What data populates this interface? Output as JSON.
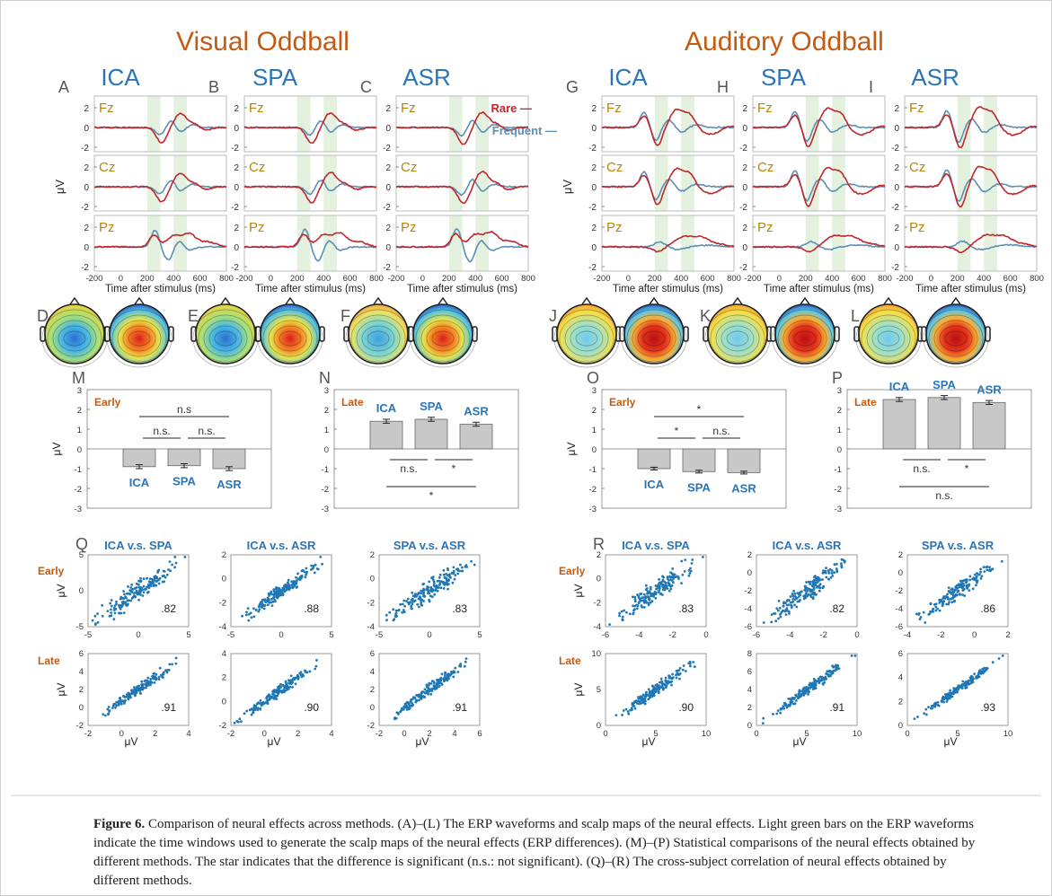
{
  "sections": [
    {
      "title": "Visual Oddball",
      "method_headers": [
        "ICA",
        "SPA",
        "ASR"
      ],
      "panel_letters": [
        "A",
        "B",
        "C"
      ],
      "topo_letters": [
        "D",
        "E",
        "F"
      ]
    },
    {
      "title": "Auditory Oddball",
      "method_headers": [
        "ICA",
        "SPA",
        "ASR"
      ],
      "panel_letters": [
        "G",
        "H",
        "I"
      ],
      "topo_letters": [
        "J",
        "K",
        "L"
      ]
    }
  ],
  "erp": {
    "channels": [
      "Fz",
      "Cz",
      "Pz"
    ],
    "ylabel": "μV",
    "xlabel": "Time after stimulus (ms)",
    "xticks": [
      "-200",
      "0",
      "200",
      "400",
      "600",
      "800"
    ],
    "yticks": [
      "2",
      "0",
      "-2"
    ],
    "legend": {
      "rare": "Rare",
      "frequent": "Frequent"
    },
    "colors": {
      "rare": "#c0262b",
      "frequent": "#5b8fb5",
      "window": "#e3f1de"
    }
  },
  "bar_panels": [
    {
      "letter": "M",
      "condition": "Early",
      "methods": [
        "ICA",
        "SPA",
        "ASR"
      ],
      "values": [
        -0.9,
        -0.85,
        -1.0
      ],
      "errors": [
        0.1,
        0.1,
        0.1
      ],
      "yticks": [
        "3",
        "2",
        "1",
        "0",
        "-1",
        "-2",
        "-3"
      ],
      "ylabel": "μV",
      "sig": [
        "n.s",
        "n.s.",
        "n.s."
      ]
    },
    {
      "letter": "N",
      "condition": "Late",
      "methods": [
        "ICA",
        "SPA",
        "ASR"
      ],
      "values": [
        1.4,
        1.5,
        1.25
      ],
      "errors": [
        0.1,
        0.1,
        0.1
      ],
      "yticks": [
        "3",
        "2",
        "1",
        "0",
        "-1",
        "-2",
        "-3"
      ],
      "ylabel": "",
      "sig": [
        "n.s.",
        "*",
        "*"
      ]
    },
    {
      "letter": "O",
      "condition": "Early",
      "methods": [
        "ICA",
        "SPA",
        "ASR"
      ],
      "values": [
        -1.0,
        -1.15,
        -1.2
      ],
      "errors": [
        0.07,
        0.07,
        0.07
      ],
      "yticks": [
        "3",
        "2",
        "1",
        "0",
        "-1",
        "-2",
        "-3"
      ],
      "ylabel": "μV",
      "sig": [
        "*",
        "*",
        "n.s."
      ]
    },
    {
      "letter": "P",
      "condition": "Late",
      "methods": [
        "ICA",
        "SPA",
        "ASR"
      ],
      "values": [
        2.5,
        2.6,
        2.35
      ],
      "errors": [
        0.1,
        0.1,
        0.1
      ],
      "yticks": [
        "3",
        "2",
        "1",
        "0",
        "-1",
        "-2",
        "-3"
      ],
      "ylabel": "",
      "sig": [
        "n.s.",
        "*",
        "n.s."
      ]
    }
  ],
  "scatter": {
    "letters": [
      "Q",
      "R"
    ],
    "titles": [
      "ICA v.s. SPA",
      "ICA v.s. ASR",
      "SPA v.s. ASR"
    ],
    "row_labels": [
      "Early",
      "Late"
    ],
    "ylabel": "μV",
    "xlabel": "μV",
    "color": "#1f77b4",
    "panels": [
      {
        "r": ".82",
        "xticks": [
          "-5",
          "0",
          "5"
        ],
        "yticks": [
          "5",
          "0",
          "-5"
        ]
      },
      {
        "r": ".88",
        "xticks": [
          "-5",
          "0",
          "5"
        ],
        "yticks": [
          "2",
          "0",
          "-2",
          "-4"
        ]
      },
      {
        "r": ".83",
        "xticks": [
          "-5",
          "0",
          "5"
        ],
        "yticks": [
          "2",
          "0",
          "-2",
          "-4"
        ]
      },
      {
        "r": ".91",
        "xticks": [
          "-2",
          "0",
          "2",
          "4"
        ],
        "yticks": [
          "6",
          "4",
          "2",
          "0",
          "-2"
        ]
      },
      {
        "r": ".90",
        "xticks": [
          "-2",
          "0",
          "2",
          "4"
        ],
        "yticks": [
          "4",
          "2",
          "0",
          "-2"
        ]
      },
      {
        "r": ".91",
        "xticks": [
          "-2",
          "0",
          "2",
          "4",
          "6"
        ],
        "yticks": [
          "6",
          "4",
          "2",
          "0",
          "-2"
        ]
      },
      {
        "r": ".83",
        "xticks": [
          "-6",
          "-4",
          "-2",
          "0"
        ],
        "yticks": [
          "2",
          "0",
          "-2",
          "-4"
        ]
      },
      {
        "r": ".82",
        "xticks": [
          "-6",
          "-4",
          "-2",
          "0"
        ],
        "yticks": [
          "2",
          "0",
          "-2",
          "-4",
          "-6"
        ]
      },
      {
        "r": ".86",
        "xticks": [
          "-4",
          "-2",
          "0",
          "2"
        ],
        "yticks": [
          "2",
          "0",
          "-2",
          "-4",
          "-6"
        ]
      },
      {
        "r": ".90",
        "xticks": [
          "0",
          "5",
          "10"
        ],
        "yticks": [
          "10",
          "5",
          "0"
        ]
      },
      {
        "r": ".91",
        "xticks": [
          "0",
          "5",
          "10"
        ],
        "yticks": [
          "8",
          "6",
          "4",
          "2",
          "0"
        ]
      },
      {
        "r": ".93",
        "xticks": [
          "0",
          "5",
          "10"
        ],
        "yticks": [
          "6",
          "4",
          "2",
          "0"
        ]
      }
    ]
  },
  "caption": {
    "label": "Figure 6.",
    "text": " Comparison of neural effects across methods. (A)–(L) The ERP waveforms and scalp maps of the neural effects. Light green bars on the ERP waveforms indicate the time windows used to generate the scalp maps of the neural effects (ERP differences). (M)–(P) Statistical comparisons of the neural effects obtained by different methods. The star indicates that the difference is significant (n.s.: not significant). (Q)–(R) The cross-subject correlation of neural effects obtained by different methods."
  }
}
